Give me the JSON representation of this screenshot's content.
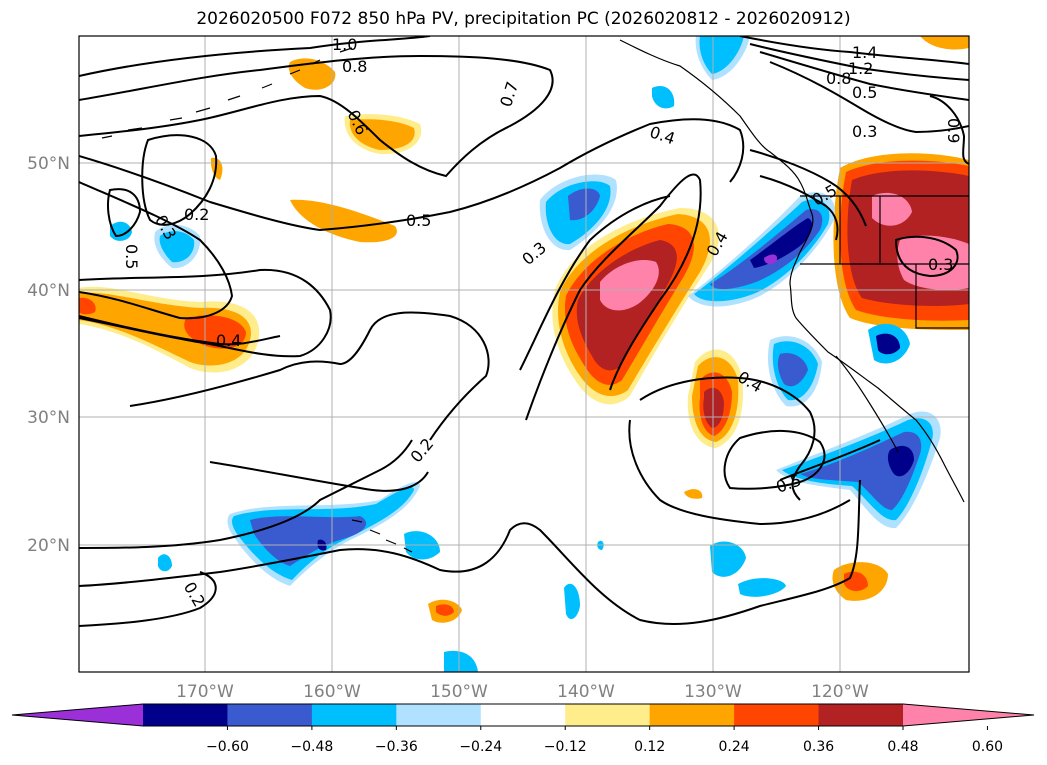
{
  "title": "2026020500 F072 850 hPa PV, precipitation PC (2026020812 - 2026020912)",
  "lat_labels": [
    "50°N",
    "40°N",
    "30°N",
    "20°N"
  ],
  "lon_labels": [
    "170°W",
    "160°W",
    "150°W",
    "140°W",
    "130°W",
    "120°W"
  ],
  "colorbar": {
    "ticks": [
      "−0.60",
      "−0.48",
      "−0.36",
      "−0.24",
      "−0.12",
      "0.12",
      "0.24",
      "0.36",
      "0.48",
      "0.60"
    ],
    "colors": [
      "#9b30d9",
      "#00008b",
      "#3a5bd0",
      "#00bfff",
      "#b0e2ff",
      "#ffffff",
      "#ffec8b",
      "#ffa500",
      "#ff4500",
      "#b22222",
      "#ff82ab"
    ]
  },
  "contour_labels": [
    "1.0",
    "0.8",
    "0.7",
    "0.6",
    "0.4",
    "1.4",
    "1.2",
    "0.8",
    "0.5",
    "0.3",
    "0.9",
    "0.2",
    "0.3",
    "0.5",
    "0.5",
    "0.3",
    "0.4",
    "0.5",
    "0.3",
    "0.4",
    "0.4",
    "0.2",
    "0.5",
    "0.2"
  ]
}
